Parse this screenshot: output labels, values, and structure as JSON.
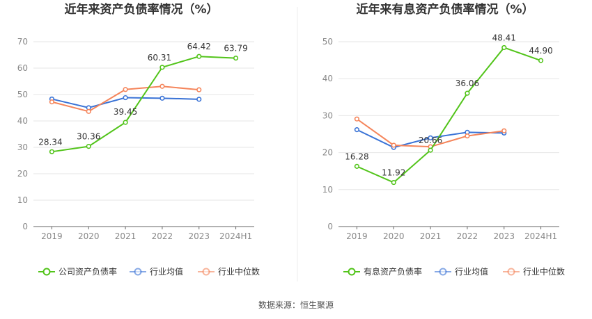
{
  "source_text": "数据来源：恒生聚源",
  "chart_data": [
    {
      "type": "line",
      "title": "近年来资产负债率情况（%）",
      "categories": [
        "2019",
        "2020",
        "2021",
        "2022",
        "2023",
        "2024H1"
      ],
      "ylim": [
        0,
        70
      ],
      "yticks": [
        "0",
        "10",
        "20",
        "30",
        "40",
        "50",
        "60",
        "70"
      ],
      "grid": true,
      "legend_position": "bottom",
      "series": [
        {
          "name": "公司资产负债率",
          "color": "#52c41a",
          "values": [
            28.34,
            30.36,
            39.45,
            60.31,
            64.42,
            63.79
          ],
          "labels": [
            "28.34",
            "30.36",
            "39.45",
            "60.31",
            "64.42",
            "63.79"
          ]
        },
        {
          "name": "行业均值",
          "color": "#3a73d6",
          "values": [
            48.3,
            45.0,
            48.8,
            48.6,
            48.2,
            null
          ],
          "labels": []
        },
        {
          "name": "行业中位数",
          "color": "#f5855b",
          "values": [
            47.2,
            43.6,
            51.9,
            53.1,
            51.8,
            null
          ],
          "labels": []
        }
      ]
    },
    {
      "type": "line",
      "title": "近年来有息资产负债率情况（%）",
      "categories": [
        "2019",
        "2020",
        "2021",
        "2022",
        "2023",
        "2024H1"
      ],
      "ylim": [
        0,
        50
      ],
      "yticks": [
        "0",
        "10",
        "20",
        "30",
        "40",
        "50"
      ],
      "grid": true,
      "legend_position": "bottom",
      "series": [
        {
          "name": "有息资产负债率",
          "color": "#52c41a",
          "values": [
            16.28,
            11.92,
            20.66,
            36.06,
            48.41,
            44.9
          ],
          "labels": [
            "16.28",
            "11.92",
            "20.66",
            "36.06",
            "48.41",
            "44.90"
          ]
        },
        {
          "name": "行业均值",
          "color": "#3a73d6",
          "values": [
            26.2,
            21.4,
            24.0,
            25.5,
            25.3,
            null
          ],
          "labels": []
        },
        {
          "name": "行业中位数",
          "color": "#f5855b",
          "values": [
            29.1,
            22.0,
            21.6,
            24.5,
            25.9,
            null
          ],
          "labels": []
        }
      ]
    }
  ]
}
